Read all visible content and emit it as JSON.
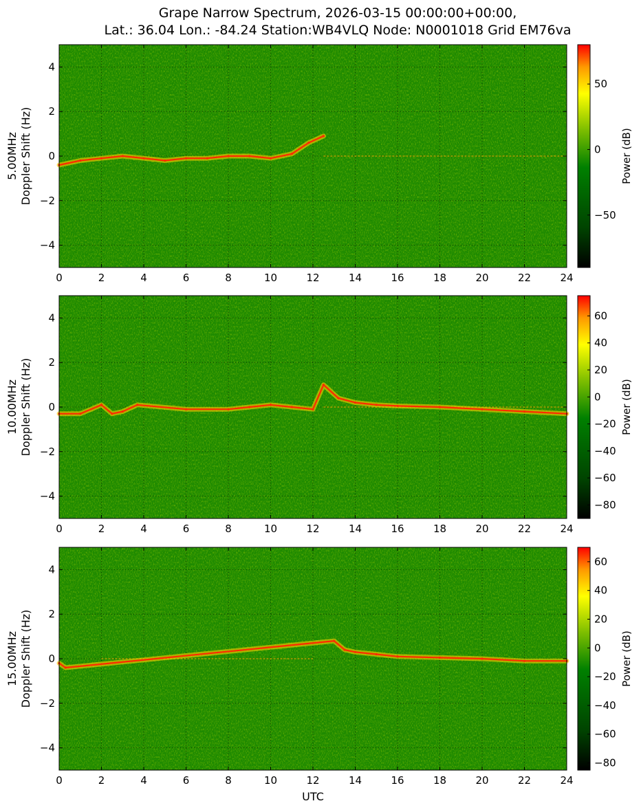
{
  "chart_data": [
    {
      "type": "heatmap",
      "title": "Grape Narrow Spectrum, 2026-03-15 00:00:00+00:00,",
      "subtitle": "Lat.: 36.04 Lon.: -84.24 Station:WB4VLQ Node: N0001018 Grid EM76va",
      "xlabel": "",
      "ylabel_freq": "5.00MHz",
      "ylabel": "Doppler Shift (Hz)",
      "xlim": [
        0,
        24
      ],
      "ylim": [
        -5,
        5
      ],
      "xticks": [
        0,
        2,
        4,
        6,
        8,
        10,
        12,
        14,
        16,
        18,
        20,
        22,
        24
      ],
      "yticks": [
        -4,
        -2,
        0,
        2,
        4
      ],
      "grid": true,
      "colorbar": {
        "label": "Power (dB)",
        "range": [
          -90,
          80
        ],
        "ticks": [
          -50,
          0,
          50
        ]
      },
      "doppler_trace": [
        [
          0,
          -0.4
        ],
        [
          1,
          -0.2
        ],
        [
          2,
          -0.1
        ],
        [
          3,
          0.0
        ],
        [
          4,
          -0.1
        ],
        [
          5,
          -0.2
        ],
        [
          6,
          -0.1
        ],
        [
          7,
          -0.1
        ],
        [
          8,
          0.0
        ],
        [
          9,
          0.0
        ],
        [
          10,
          -0.1
        ],
        [
          11,
          0.1
        ],
        [
          11.8,
          0.6
        ],
        [
          12.5,
          0.9
        ]
      ],
      "carrier_line": [
        [
          12.5,
          0.0
        ],
        [
          24,
          0.0
        ]
      ]
    },
    {
      "type": "heatmap",
      "xlabel": "",
      "ylabel_freq": "10.00MHz",
      "ylabel": "Doppler Shift (Hz)",
      "xlim": [
        0,
        24
      ],
      "ylim": [
        -5,
        5
      ],
      "xticks": [
        0,
        2,
        4,
        6,
        8,
        10,
        12,
        14,
        16,
        18,
        20,
        22,
        24
      ],
      "yticks": [
        -4,
        -2,
        0,
        2,
        4
      ],
      "grid": true,
      "colorbar": {
        "label": "Power (dB)",
        "range": [
          -90,
          75
        ],
        "ticks": [
          -80,
          -60,
          -40,
          -20,
          0,
          20,
          40,
          60
        ]
      },
      "doppler_trace": [
        [
          0,
          -0.3
        ],
        [
          1,
          -0.3
        ],
        [
          2,
          0.1
        ],
        [
          2.5,
          -0.3
        ],
        [
          3,
          -0.2
        ],
        [
          3.7,
          0.1
        ],
        [
          6,
          -0.1
        ],
        [
          8,
          -0.1
        ],
        [
          9,
          0.0
        ],
        [
          10,
          0.1
        ],
        [
          11,
          0.0
        ],
        [
          12,
          -0.1
        ],
        [
          12.5,
          1.0
        ],
        [
          13.2,
          0.4
        ],
        [
          14,
          0.2
        ],
        [
          15,
          0.1
        ],
        [
          16,
          0.05
        ],
        [
          18,
          0.0
        ],
        [
          20,
          -0.1
        ],
        [
          22,
          -0.2
        ],
        [
          24,
          -0.3
        ]
      ],
      "carrier_line": [
        [
          12.5,
          0.0
        ],
        [
          24,
          0.0
        ]
      ]
    },
    {
      "type": "heatmap",
      "xlabel": "UTC",
      "ylabel_freq": "15.00MHz",
      "ylabel": "Doppler Shift (Hz)",
      "xlim": [
        0,
        24
      ],
      "ylim": [
        -5,
        5
      ],
      "xticks": [
        0,
        2,
        4,
        6,
        8,
        10,
        12,
        14,
        16,
        18,
        20,
        22,
        24
      ],
      "yticks": [
        -4,
        -2,
        0,
        2,
        4
      ],
      "grid": true,
      "colorbar": {
        "label": "Power (dB)",
        "range": [
          -85,
          70
        ],
        "ticks": [
          -80,
          -60,
          -40,
          -20,
          0,
          20,
          40,
          60
        ]
      },
      "doppler_trace": [
        [
          0,
          -0.2
        ],
        [
          0.3,
          -0.4
        ],
        [
          13,
          0.8
        ],
        [
          13.5,
          0.4
        ],
        [
          14,
          0.3
        ],
        [
          15,
          0.2
        ],
        [
          16,
          0.1
        ],
        [
          18,
          0.05
        ],
        [
          20,
          0.0
        ],
        [
          22,
          -0.1
        ],
        [
          24,
          -0.1
        ]
      ],
      "carrier_line": [
        [
          2,
          0.0
        ],
        [
          12,
          0.0
        ]
      ]
    }
  ],
  "colors": {
    "low": "#000000",
    "mid": "#008000",
    "high_mid": "#ffff00",
    "peak": "#ff0000",
    "trace": "#ff2a00",
    "grid": "#000000"
  }
}
